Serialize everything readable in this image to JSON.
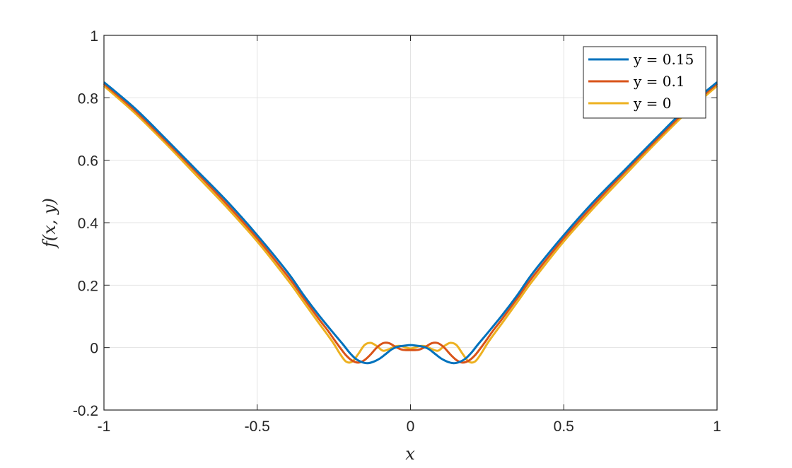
{
  "chart_data": {
    "type": "line",
    "title": "",
    "xlabel": "x",
    "ylabel": "f(x, y)",
    "xlim": [
      -1,
      1
    ],
    "ylim": [
      -0.2,
      1
    ],
    "xticks": [
      -1,
      -0.5,
      0,
      0.5,
      1
    ],
    "xtick_labels": [
      "-1",
      "-0.5",
      "0",
      "0.5",
      "1"
    ],
    "yticks": [
      -0.2,
      0,
      0.2,
      0.4,
      0.6,
      0.8,
      1
    ],
    "ytick_labels": [
      "-0.2",
      "0",
      "0.2",
      "0.4",
      "0.6",
      "0.8",
      "1"
    ],
    "grid": true,
    "legend_position": "top-right",
    "series": [
      {
        "name": "y = 0.15",
        "color": "#0072BD",
        "x": [
          -1,
          -0.9,
          -0.8,
          -0.7,
          -0.6,
          -0.5,
          -0.4,
          -0.35,
          -0.3,
          -0.25,
          -0.22,
          -0.2,
          -0.18,
          -0.16,
          -0.14,
          -0.12,
          -0.1,
          -0.08,
          -0.06,
          -0.04,
          -0.02,
          0,
          0.02,
          0.04,
          0.06,
          0.08,
          0.1,
          0.12,
          0.14,
          0.16,
          0.18,
          0.2,
          0.22,
          0.25,
          0.3,
          0.35,
          0.4,
          0.5,
          0.6,
          0.7,
          0.8,
          0.9,
          1
        ],
        "y": [
          0.85,
          0.767,
          0.67,
          0.57,
          0.47,
          0.36,
          0.24,
          0.17,
          0.105,
          0.045,
          0.01,
          -0.015,
          -0.035,
          -0.046,
          -0.05,
          -0.045,
          -0.035,
          -0.02,
          -0.005,
          0.003,
          0.006,
          0.008,
          0.006,
          0.003,
          -0.005,
          -0.02,
          -0.035,
          -0.045,
          -0.05,
          -0.046,
          -0.035,
          -0.015,
          0.01,
          0.045,
          0.105,
          0.17,
          0.24,
          0.36,
          0.47,
          0.57,
          0.67,
          0.767,
          0.85
        ]
      },
      {
        "name": "y = 0.1",
        "color": "#D95319",
        "x": [
          -1,
          -0.9,
          -0.8,
          -0.7,
          -0.6,
          -0.5,
          -0.4,
          -0.35,
          -0.3,
          -0.27,
          -0.25,
          -0.23,
          -0.21,
          -0.19,
          -0.17,
          -0.15,
          -0.13,
          -0.11,
          -0.09,
          -0.07,
          -0.05,
          -0.03,
          -0.015,
          0,
          0.015,
          0.03,
          0.05,
          0.07,
          0.09,
          0.11,
          0.13,
          0.15,
          0.17,
          0.19,
          0.21,
          0.23,
          0.25,
          0.27,
          0.3,
          0.35,
          0.4,
          0.5,
          0.6,
          0.7,
          0.8,
          0.9,
          1
        ],
        "y": [
          0.845,
          0.76,
          0.663,
          0.563,
          0.46,
          0.35,
          0.228,
          0.16,
          0.093,
          0.055,
          0.027,
          0.0,
          -0.025,
          -0.042,
          -0.048,
          -0.04,
          -0.022,
          0.0,
          0.014,
          0.014,
          0.003,
          -0.006,
          -0.008,
          -0.008,
          -0.008,
          -0.006,
          0.003,
          0.014,
          0.014,
          0.0,
          -0.022,
          -0.04,
          -0.048,
          -0.042,
          -0.025,
          0.0,
          0.027,
          0.055,
          0.093,
          0.16,
          0.228,
          0.35,
          0.46,
          0.563,
          0.663,
          0.76,
          0.845
        ]
      },
      {
        "name": "y = 0",
        "color": "#EDB120",
        "x": [
          -1,
          -0.9,
          -0.8,
          -0.7,
          -0.6,
          -0.5,
          -0.4,
          -0.35,
          -0.3,
          -0.27,
          -0.25,
          -0.23,
          -0.21,
          -0.19,
          -0.17,
          -0.15,
          -0.13,
          -0.11,
          -0.09,
          -0.07,
          -0.05,
          -0.03,
          -0.015,
          0,
          0.015,
          0.03,
          0.05,
          0.07,
          0.09,
          0.11,
          0.13,
          0.15,
          0.17,
          0.19,
          0.21,
          0.23,
          0.25,
          0.27,
          0.3,
          0.35,
          0.4,
          0.5,
          0.6,
          0.7,
          0.8,
          0.9,
          1
        ],
        "y": [
          0.838,
          0.752,
          0.655,
          0.553,
          0.45,
          0.34,
          0.216,
          0.148,
          0.08,
          0.04,
          0.012,
          -0.02,
          -0.045,
          -0.045,
          -0.02,
          0.008,
          0.015,
          0.005,
          -0.01,
          -0.005,
          0.004,
          0.005,
          0.0,
          -0.003,
          0.0,
          0.005,
          0.004,
          -0.005,
          -0.01,
          0.005,
          0.015,
          0.008,
          -0.02,
          -0.045,
          -0.045,
          -0.02,
          0.012,
          0.04,
          0.08,
          0.148,
          0.216,
          0.34,
          0.45,
          0.553,
          0.655,
          0.752,
          0.838
        ]
      }
    ]
  }
}
